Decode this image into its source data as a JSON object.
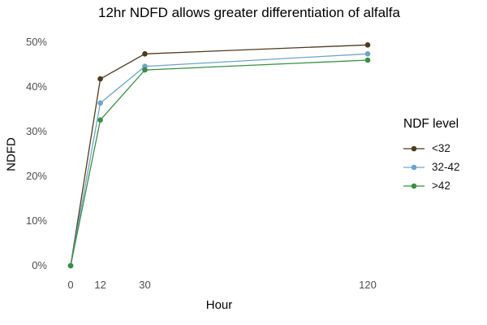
{
  "chart_data": {
    "type": "line",
    "title": "12hr NDFD allows greater differentiation of alfalfa",
    "xlabel": "Hour",
    "ylabel": "NDFD",
    "x": [
      0,
      12,
      30,
      120
    ],
    "series": [
      {
        "name": "<32",
        "color": "#4d3b20",
        "values": [
          0,
          41.8,
          47.4,
          49.4
        ]
      },
      {
        "name": "32-42",
        "color": "#6fa3c7",
        "values": [
          0,
          36.4,
          44.6,
          47.4
        ]
      },
      {
        "name": ">42",
        "color": "#388e46",
        "values": [
          0,
          32.6,
          43.8,
          46.0
        ]
      }
    ],
    "xlim": [
      0,
      120
    ],
    "ylim": [
      0,
      50
    ],
    "x_ticks": {
      "values": [
        0,
        12,
        30,
        120
      ],
      "labels": [
        "0",
        "12",
        "30",
        "120"
      ]
    },
    "y_ticks": {
      "values": [
        0,
        10,
        20,
        30,
        40,
        50
      ],
      "labels": [
        "0%",
        "10%",
        "20%",
        "30%",
        "40%",
        "50%"
      ]
    },
    "grid": false,
    "legend": {
      "title": "NDF level",
      "position": "right"
    },
    "tick_color": "#4d4d4d",
    "background": "#ffffff"
  }
}
